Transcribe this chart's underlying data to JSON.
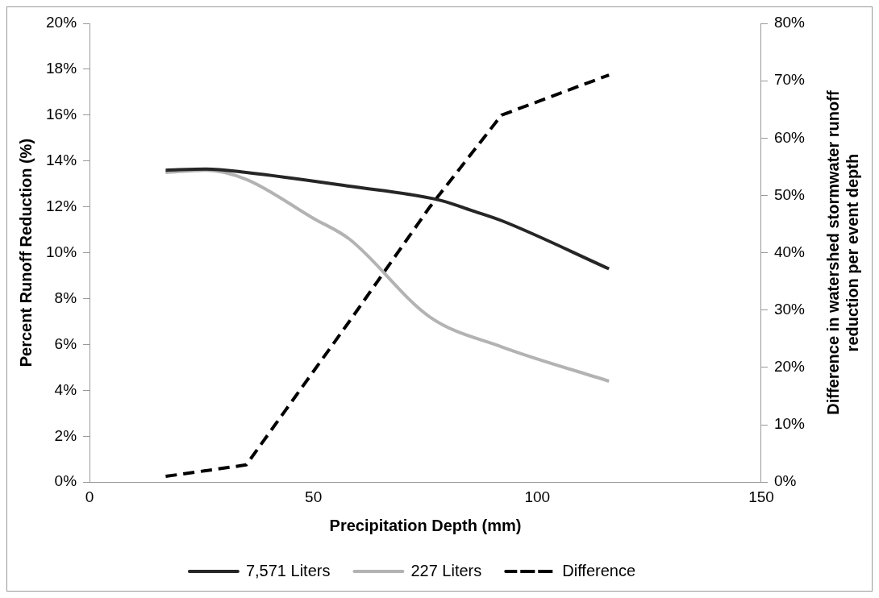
{
  "chart_data": {
    "type": "line",
    "xlabel": "Precipitation Depth (mm)",
    "ylabel": "Percent Runoff Reduction (%)",
    "y2label": "Difference in watershed stormwater runoff reduction per event depth",
    "xlim": [
      0,
      150
    ],
    "xticks": [
      0,
      50,
      100,
      150
    ],
    "ylim": [
      0,
      20
    ],
    "yticks": [
      {
        "value": 0,
        "label": "0%"
      },
      {
        "value": 2,
        "label": "2%"
      },
      {
        "value": 4,
        "label": "4%"
      },
      {
        "value": 6,
        "label": "6%"
      },
      {
        "value": 8,
        "label": "8%"
      },
      {
        "value": 10,
        "label": "10%"
      },
      {
        "value": 12,
        "label": "12%"
      },
      {
        "value": 14,
        "label": "14%"
      },
      {
        "value": 16,
        "label": "16%"
      },
      {
        "value": 18,
        "label": "18%"
      },
      {
        "value": 20,
        "label": "20%"
      }
    ],
    "y2lim": [
      0,
      80
    ],
    "y2ticks": [
      {
        "value": 0,
        "label": "0%"
      },
      {
        "value": 10,
        "label": "10%"
      },
      {
        "value": 20,
        "label": "20%"
      },
      {
        "value": 30,
        "label": "30%"
      },
      {
        "value": 40,
        "label": "40%"
      },
      {
        "value": 50,
        "label": "50%"
      },
      {
        "value": 60,
        "label": "60%"
      },
      {
        "value": 70,
        "label": "70%"
      },
      {
        "value": 80,
        "label": "80%"
      }
    ],
    "grid": false,
    "legend": "bottom",
    "series": [
      {
        "name": "7,571 Liters",
        "color": "#262626",
        "line_style": "solid",
        "x": [
          17,
          26,
          35,
          58,
          78,
          86,
          92,
          116
        ],
        "values": [
          13.6,
          13.65,
          13.5,
          12.9,
          12.3,
          11.8,
          11.4,
          9.3
        ]
      },
      {
        "name": "227 Liters",
        "color": "#b3b3b3",
        "line_style": "solid",
        "x": [
          17,
          26,
          35,
          50,
          58,
          76,
          92,
          116
        ],
        "values": [
          13.5,
          13.6,
          13.2,
          11.5,
          10.6,
          7.2,
          5.9,
          4.4
        ]
      },
      {
        "name": "Difference",
        "color": "#000000",
        "line_style": "dashed",
        "axis": "y2",
        "x": [
          17,
          35,
          58,
          76,
          92,
          116
        ],
        "values": [
          1,
          3,
          28,
          48,
          64,
          71
        ]
      }
    ]
  }
}
